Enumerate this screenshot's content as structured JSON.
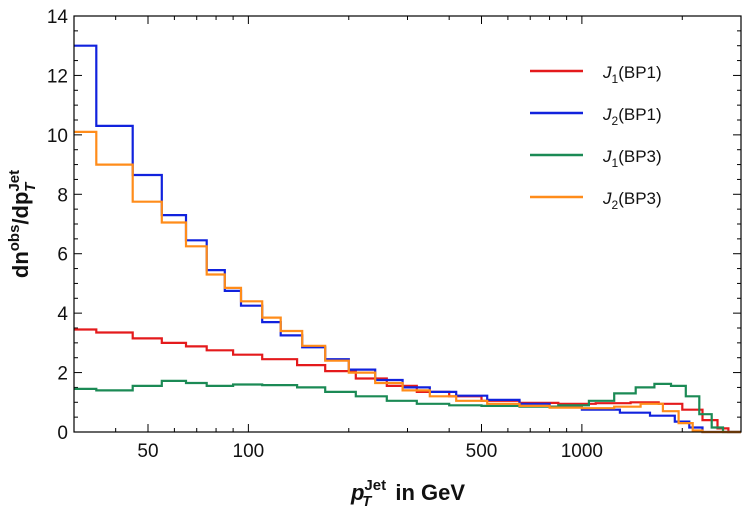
{
  "chart_data": {
    "type": "line",
    "title": "",
    "xlabel": {
      "main": "p",
      "sup": "Jet",
      "sub": "T",
      "suffix": " in GeV"
    },
    "ylabel": {
      "main": "dn",
      "sup1": "obs",
      "mid": "/dp",
      "sup2": "Jet",
      "sub": "T"
    },
    "xscale": "log",
    "xlim": [
      30,
      3000
    ],
    "ylim": [
      0,
      14
    ],
    "xticks": [
      50,
      100,
      500,
      1000
    ],
    "xtick_labels": [
      "50",
      "100",
      "500",
      "1000"
    ],
    "yticks": [
      0,
      2,
      4,
      6,
      8,
      10,
      12,
      14
    ],
    "ytick_labels": [
      "0",
      "2",
      "4",
      "6",
      "8",
      "10",
      "12",
      "14"
    ],
    "grid": false,
    "legend_position": "top-right",
    "series": [
      {
        "name": "J1(BP1)",
        "label_main": "J",
        "label_sub": "1",
        "label_suffix": "(BP1)",
        "color": "#e41a1c",
        "bins": [
          [
            30,
            35,
            3.45
          ],
          [
            35,
            45,
            3.35
          ],
          [
            45,
            55,
            3.15
          ],
          [
            55,
            65,
            3.0
          ],
          [
            65,
            75,
            2.88
          ],
          [
            75,
            90,
            2.75
          ],
          [
            90,
            110,
            2.6
          ],
          [
            110,
            140,
            2.45
          ],
          [
            140,
            170,
            2.25
          ],
          [
            170,
            210,
            2.05
          ],
          [
            210,
            260,
            1.8
          ],
          [
            260,
            320,
            1.55
          ],
          [
            320,
            400,
            1.35
          ],
          [
            400,
            500,
            1.2
          ],
          [
            500,
            650,
            1.05
          ],
          [
            650,
            850,
            0.98
          ],
          [
            850,
            1100,
            0.95
          ],
          [
            1100,
            1400,
            0.97
          ],
          [
            1400,
            1700,
            1.0
          ],
          [
            1700,
            2000,
            0.95
          ],
          [
            2000,
            2300,
            0.75
          ],
          [
            2300,
            2550,
            0.4
          ],
          [
            2550,
            2750,
            0.12
          ],
          [
            2750,
            3000,
            0.0
          ]
        ]
      },
      {
        "name": "J2(BP1)",
        "label_main": "J",
        "label_sub": "2",
        "label_suffix": "(BP1)",
        "color": "#1122dd",
        "bins": [
          [
            30,
            35,
            13.0
          ],
          [
            35,
            45,
            10.3
          ],
          [
            45,
            55,
            8.65
          ],
          [
            55,
            65,
            7.3
          ],
          [
            65,
            75,
            6.45
          ],
          [
            75,
            85,
            5.45
          ],
          [
            85,
            95,
            4.75
          ],
          [
            95,
            110,
            4.25
          ],
          [
            110,
            125,
            3.7
          ],
          [
            125,
            145,
            3.25
          ],
          [
            145,
            170,
            2.85
          ],
          [
            170,
            200,
            2.45
          ],
          [
            200,
            240,
            2.1
          ],
          [
            240,
            290,
            1.75
          ],
          [
            290,
            350,
            1.5
          ],
          [
            350,
            420,
            1.35
          ],
          [
            420,
            520,
            1.22
          ],
          [
            520,
            650,
            1.08
          ],
          [
            650,
            800,
            0.95
          ],
          [
            800,
            1000,
            0.85
          ],
          [
            1000,
            1300,
            0.75
          ],
          [
            1300,
            1600,
            0.65
          ],
          [
            1600,
            1900,
            0.55
          ],
          [
            1900,
            2100,
            0.35
          ],
          [
            2100,
            2300,
            0.15
          ],
          [
            2300,
            3000,
            0.0
          ]
        ]
      },
      {
        "name": "J1(BP3)",
        "label_main": "J",
        "label_sub": "1",
        "label_suffix": "(BP3)",
        "color": "#1b8a55",
        "bins": [
          [
            30,
            35,
            1.45
          ],
          [
            35,
            45,
            1.4
          ],
          [
            45,
            55,
            1.55
          ],
          [
            55,
            65,
            1.72
          ],
          [
            65,
            75,
            1.65
          ],
          [
            75,
            90,
            1.55
          ],
          [
            90,
            110,
            1.6
          ],
          [
            110,
            140,
            1.58
          ],
          [
            140,
            170,
            1.5
          ],
          [
            170,
            210,
            1.35
          ],
          [
            210,
            260,
            1.2
          ],
          [
            260,
            320,
            1.05
          ],
          [
            320,
            400,
            0.95
          ],
          [
            400,
            500,
            0.9
          ],
          [
            500,
            650,
            0.88
          ],
          [
            650,
            850,
            0.85
          ],
          [
            850,
            1050,
            0.9
          ],
          [
            1050,
            1250,
            1.05
          ],
          [
            1250,
            1450,
            1.3
          ],
          [
            1450,
            1650,
            1.5
          ],
          [
            1650,
            1850,
            1.62
          ],
          [
            1850,
            2050,
            1.55
          ],
          [
            2050,
            2250,
            1.2
          ],
          [
            2250,
            2450,
            0.6
          ],
          [
            2450,
            2650,
            0.15
          ],
          [
            2650,
            3000,
            0.0
          ]
        ]
      },
      {
        "name": "J2(BP3)",
        "label_main": "J",
        "label_sub": "2",
        "label_suffix": "(BP3)",
        "color": "#ff8c1a",
        "bins": [
          [
            30,
            35,
            10.1
          ],
          [
            35,
            45,
            9.0
          ],
          [
            45,
            55,
            7.75
          ],
          [
            55,
            65,
            7.05
          ],
          [
            65,
            75,
            6.25
          ],
          [
            75,
            85,
            5.3
          ],
          [
            85,
            95,
            4.85
          ],
          [
            95,
            110,
            4.4
          ],
          [
            110,
            125,
            3.85
          ],
          [
            125,
            145,
            3.4
          ],
          [
            145,
            170,
            2.9
          ],
          [
            170,
            200,
            2.4
          ],
          [
            200,
            240,
            2.0
          ],
          [
            240,
            290,
            1.65
          ],
          [
            290,
            350,
            1.4
          ],
          [
            350,
            420,
            1.2
          ],
          [
            420,
            520,
            1.05
          ],
          [
            520,
            650,
            0.95
          ],
          [
            650,
            800,
            0.88
          ],
          [
            800,
            1000,
            0.82
          ],
          [
            1000,
            1250,
            0.8
          ],
          [
            1250,
            1500,
            0.85
          ],
          [
            1500,
            1750,
            0.95
          ],
          [
            1750,
            1950,
            0.7
          ],
          [
            1950,
            2150,
            0.3
          ],
          [
            2150,
            2300,
            0.05
          ],
          [
            2300,
            3000,
            0.0
          ]
        ]
      }
    ]
  }
}
